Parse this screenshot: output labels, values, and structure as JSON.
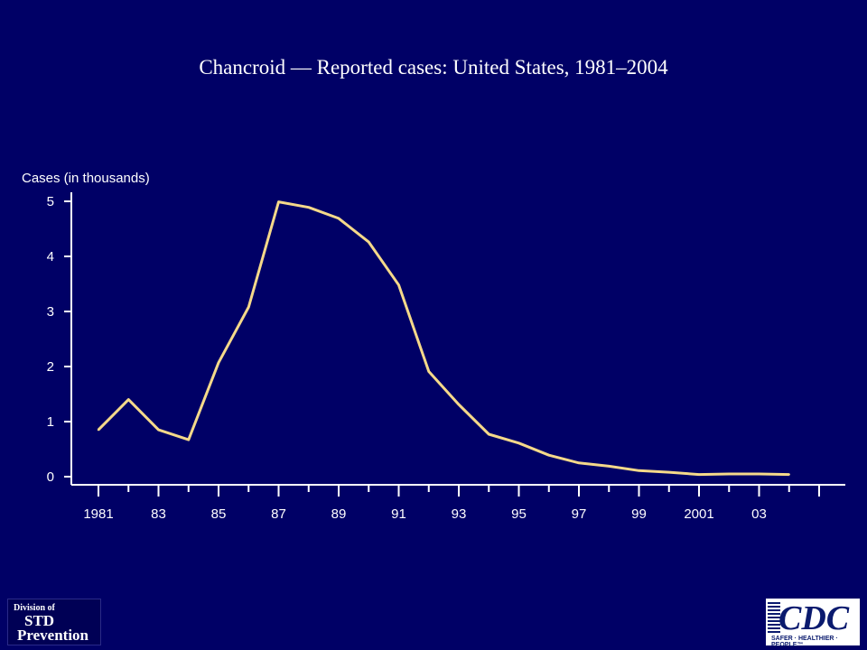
{
  "chart_data": {
    "type": "line",
    "title": "Chancroid — Reported cases: United States, 1981–2004",
    "ylabel": "Cases (in thousands)",
    "xlabel": "",
    "ylim": [
      0,
      5
    ],
    "yticks": [
      "0",
      "1",
      "2",
      "3",
      "4",
      "5"
    ],
    "x_tick_labels": [
      "1981",
      "83",
      "85",
      "87",
      "89",
      "91",
      "93",
      "95",
      "97",
      "99",
      "2001",
      "03"
    ],
    "x": [
      1981,
      1982,
      1983,
      1984,
      1985,
      1986,
      1987,
      1988,
      1989,
      1990,
      1991,
      1992,
      1993,
      1994,
      1995,
      1996,
      1997,
      1998,
      1999,
      2000,
      2001,
      2002,
      2003,
      2004
    ],
    "series": [
      {
        "color": "#f5d98a",
        "values": [
          0.85,
          1.4,
          0.85,
          0.67,
          2.07,
          3.08,
          4.99,
          4.89,
          4.69,
          4.26,
          3.48,
          1.91,
          1.31,
          0.77,
          0.61,
          0.39,
          0.25,
          0.19,
          0.11,
          0.08,
          0.04,
          0.05,
          0.05,
          0.04
        ]
      }
    ],
    "grid": false
  },
  "logos": {
    "std": {
      "line1": "Division of",
      "line2": "STD",
      "line3": "Prevention"
    },
    "cdc": {
      "word": "CDC",
      "tagline": "SAFER · HEALTHIER · PEOPLE™"
    }
  }
}
